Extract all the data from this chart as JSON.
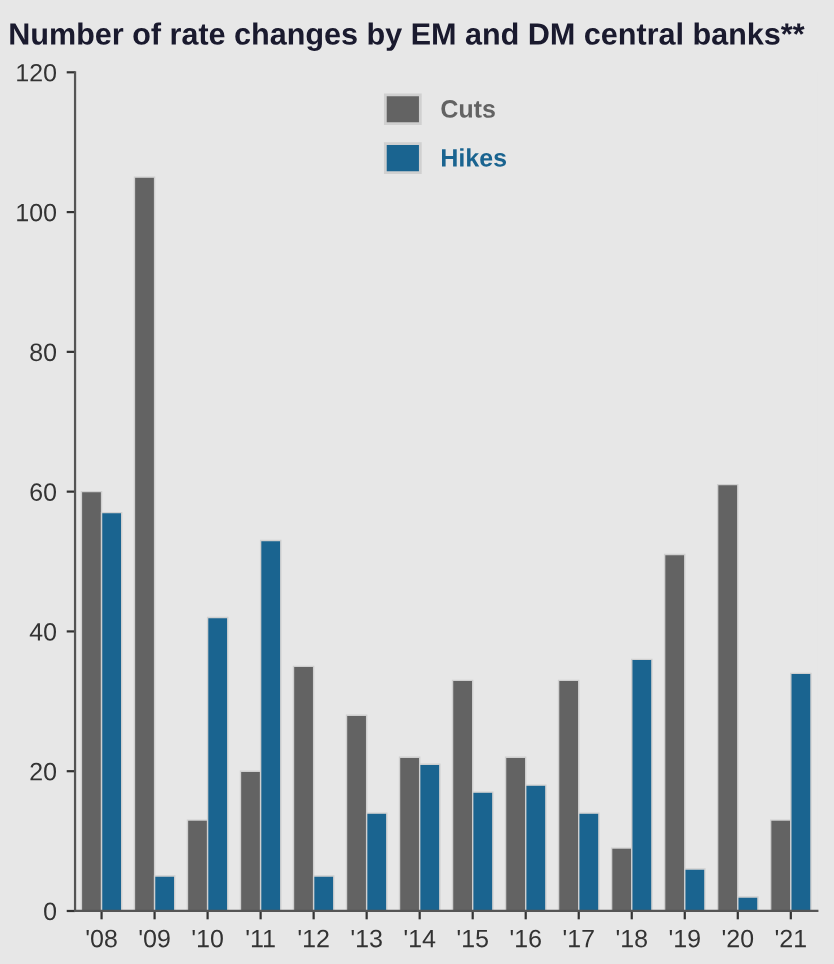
{
  "chart_data": {
    "type": "bar",
    "title": "Number of rate changes by EM and DM central banks**",
    "categories": [
      "'08",
      "'09",
      "'10",
      "'11",
      "'12",
      "'13",
      "'14",
      "'15",
      "'16",
      "'17",
      "'18",
      "'19",
      "'20",
      "'21"
    ],
    "series": [
      {
        "name": "Cuts",
        "color": "#636363",
        "values": [
          60,
          105,
          13,
          20,
          35,
          28,
          22,
          33,
          22,
          33,
          9,
          51,
          61,
          13
        ]
      },
      {
        "name": "Hikes",
        "color": "#1a6490",
        "values": [
          57,
          5,
          42,
          53,
          5,
          14,
          21,
          17,
          18,
          14,
          36,
          6,
          2,
          34
        ]
      }
    ],
    "ylim": [
      0,
      120
    ],
    "yticks": [
      0,
      20,
      40,
      60,
      80,
      100,
      120
    ],
    "grid": false,
    "legend": "top"
  }
}
